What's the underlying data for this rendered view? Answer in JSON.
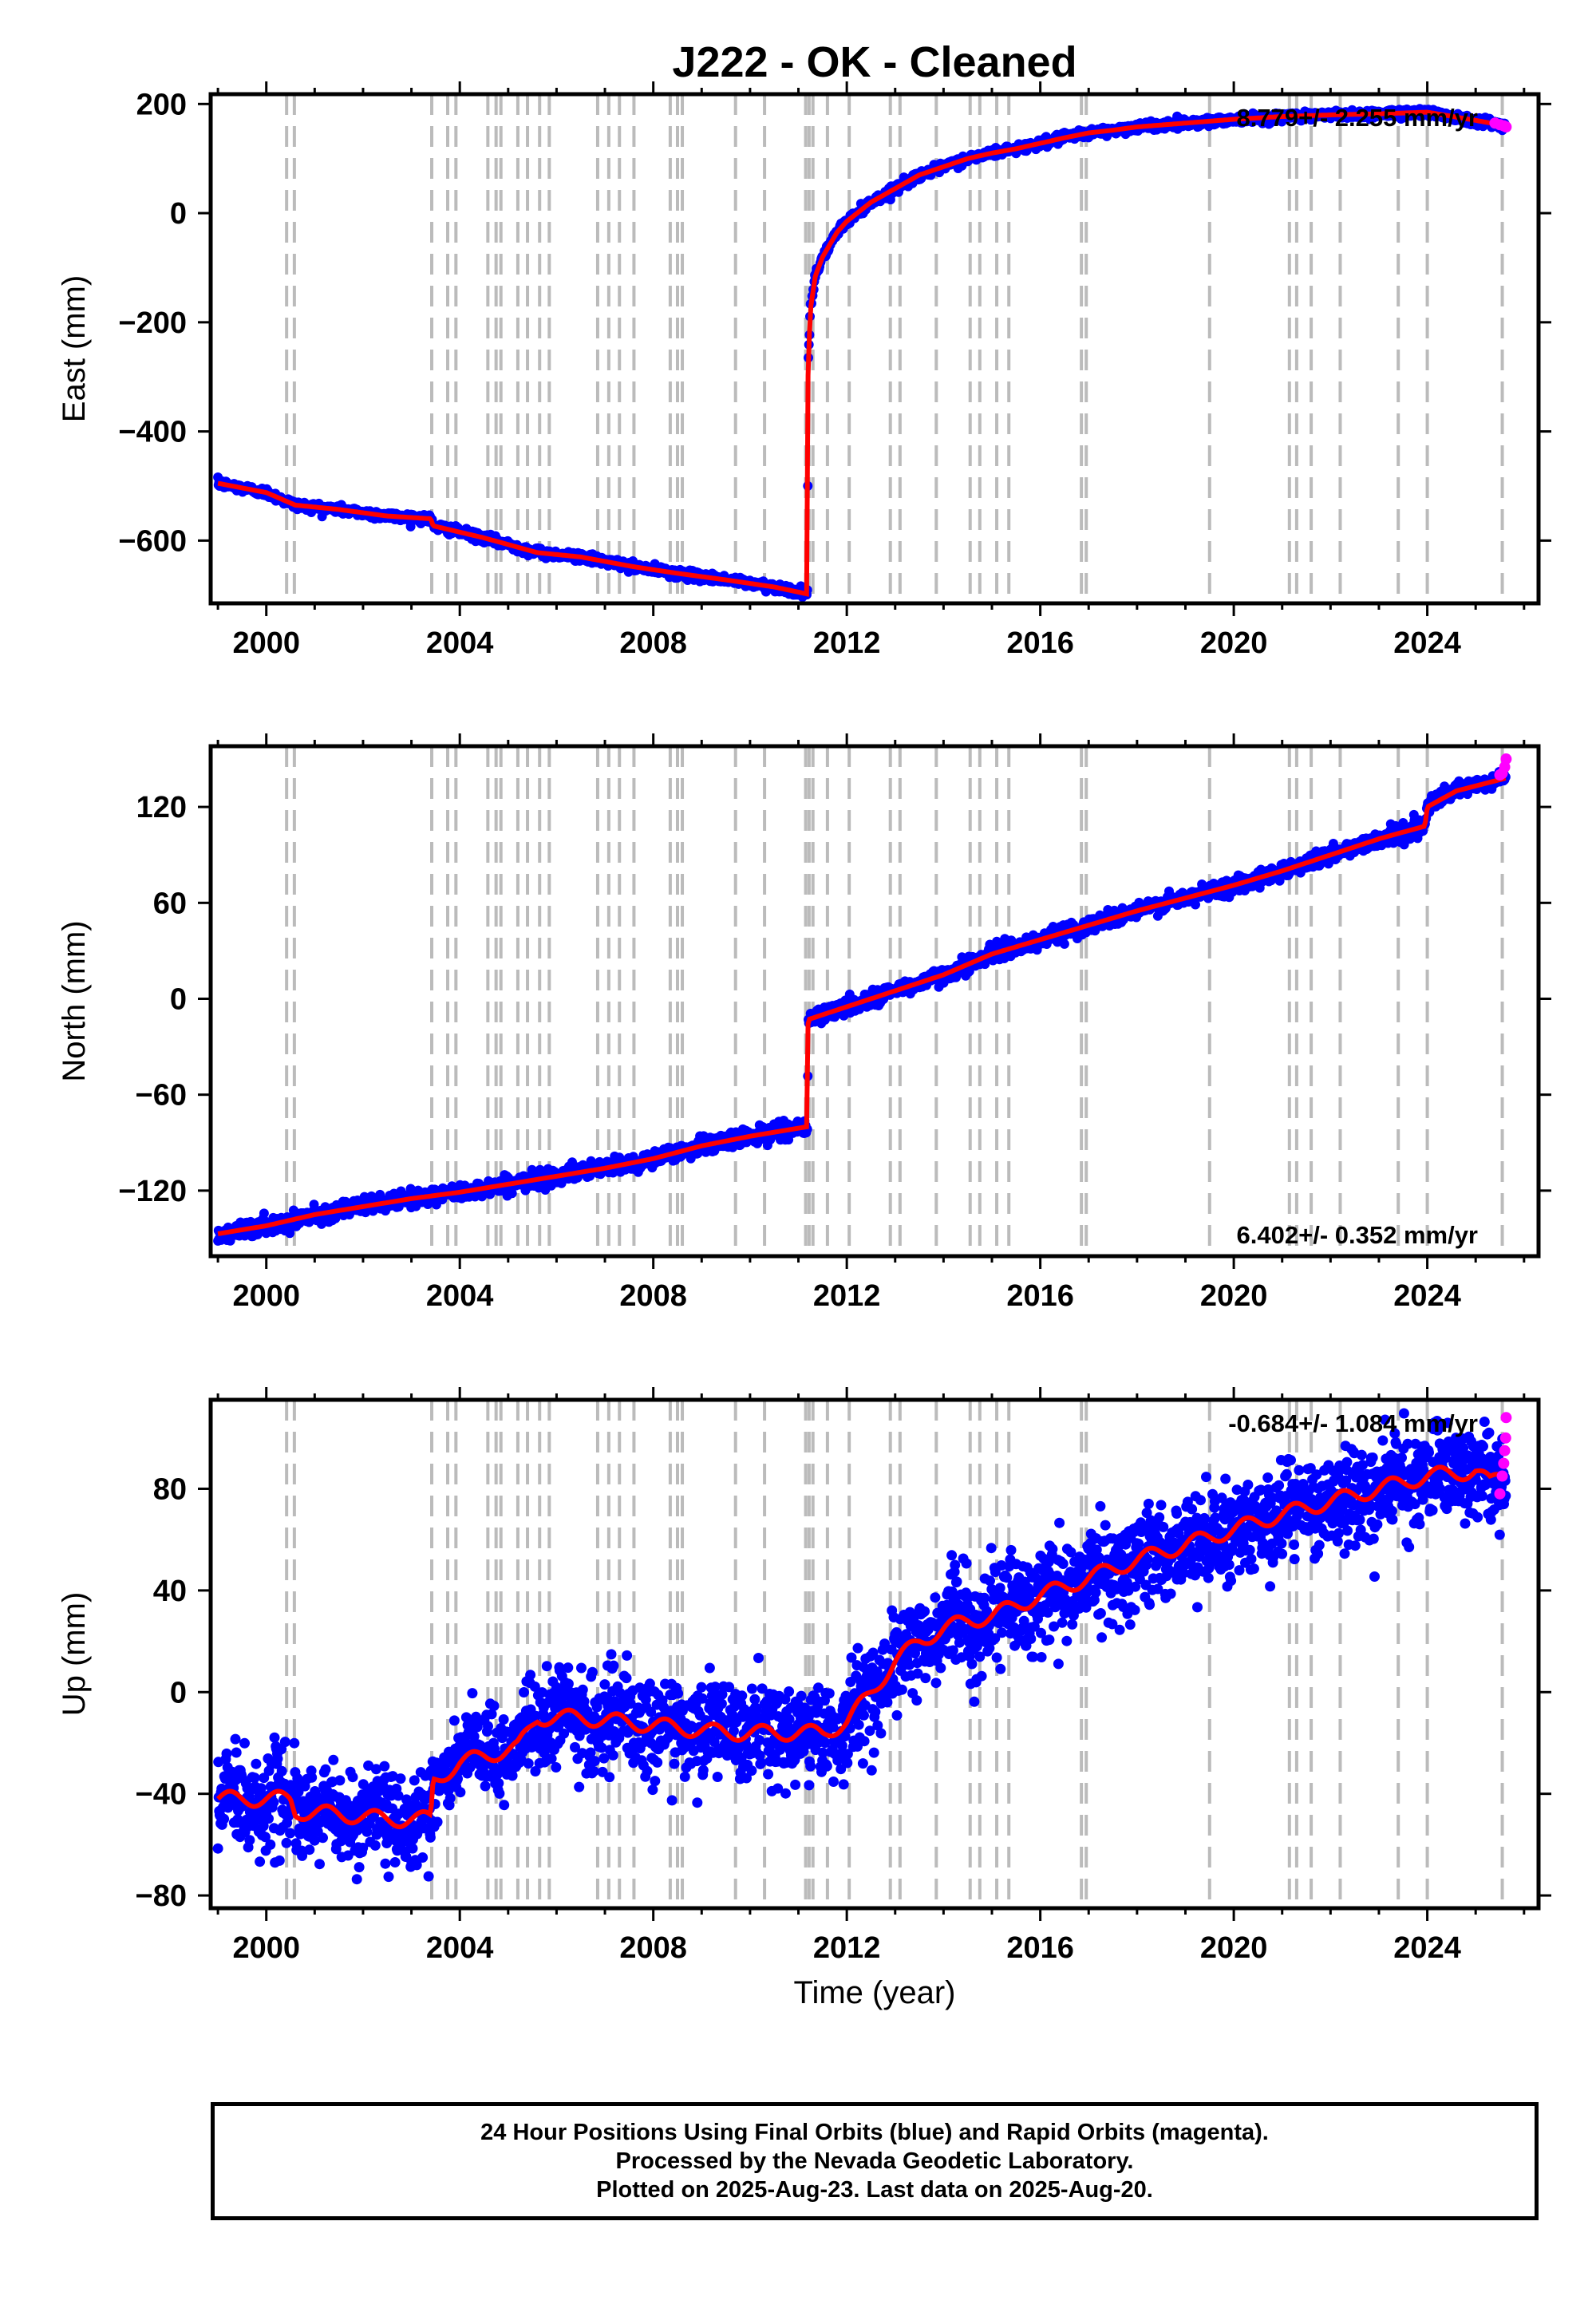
{
  "title": "J222  - OK - Cleaned",
  "xlabel": "Time (year)",
  "x_tick_labels": [
    "2000",
    "2004",
    "2008",
    "2012",
    "2016",
    "2020",
    "2024"
  ],
  "caption": [
    "24 Hour Positions Using Final Orbits (blue) and Rapid Orbits (magenta).",
    "Processed by the Nevada Geodetic Laboratory.",
    "Plotted on 2025-Aug-23. Last data on 2025-Aug-20."
  ],
  "colors": {
    "final_orbits": "#0000ff",
    "rapid_orbits": "#ff00ff",
    "model": "#ff0000",
    "event_lines": "#bbbbbb"
  },
  "event_years": [
    2000.42,
    2000.58,
    2003.42,
    2003.75,
    2003.92,
    2004.58,
    2004.75,
    2004.85,
    2005.2,
    2005.4,
    2005.65,
    2005.85,
    2006.85,
    2007.08,
    2007.3,
    2007.6,
    2008.35,
    2008.5,
    2008.6,
    2009.7,
    2010.3,
    2011.15,
    2011.22,
    2011.3,
    2011.6,
    2012.05,
    2012.9,
    2013.1,
    2013.85,
    2014.55,
    2014.75,
    2015.1,
    2015.35,
    2016.85,
    2016.95,
    2019.5,
    2021.15,
    2021.3,
    2021.6,
    2022.2,
    2023.4,
    2024.0,
    2025.55
  ],
  "chart_data": [
    {
      "type": "scatter",
      "panel": "east",
      "ylabel": "East (mm)",
      "xlim": [
        1998.85,
        2026.3
      ],
      "ylim": [
        -715,
        218
      ],
      "y_ticks": [
        200,
        0,
        -200,
        -400,
        -600
      ],
      "y_tick_labels": [
        "200",
        "0",
        "−200",
        "−400",
        "−600"
      ],
      "rate_label": "8.779+/- 2.255 mm/yr",
      "rate_label_position": "top-right",
      "scatter_sigma": 4,
      "series": [
        {
          "role": "final_orbits",
          "x": [
            1999.0,
            2000.0,
            2000.6,
            2001.5,
            2002.5,
            2003.4,
            2003.45,
            2004.5,
            2005.6,
            2006.5,
            2007.6,
            2008.5,
            2009.5,
            2010.5,
            2011.19,
            2011.2,
            2011.25,
            2011.35,
            2011.5,
            2011.8,
            2012.0,
            2012.5,
            2013.0,
            2013.5,
            2014.0,
            2014.5,
            2015.0,
            2015.5,
            2016.0,
            2016.5,
            2017.0,
            2017.5,
            2018.0,
            2019.0,
            2020.0,
            2021.0,
            2022.0,
            2023.0,
            2024.0,
            2025.0,
            2025.62
          ],
          "y": [
            -495,
            -512,
            -535,
            -543,
            -555,
            -560,
            -573,
            -595,
            -622,
            -630,
            -648,
            -660,
            -672,
            -685,
            -698,
            -280,
            -175,
            -115,
            -80,
            -35,
            -15,
            20,
            45,
            70,
            85,
            100,
            110,
            118,
            128,
            138,
            147,
            152,
            158,
            165,
            172,
            177,
            180,
            182,
            185,
            170,
            160
          ]
        },
        {
          "role": "rapid_orbits",
          "x": [
            2025.4,
            2025.5,
            2025.58,
            2025.63
          ],
          "y": [
            165,
            162,
            160,
            158
          ]
        }
      ]
    },
    {
      "type": "scatter",
      "panel": "north",
      "ylabel": "North (mm)",
      "xlim": [
        1998.85,
        2026.3
      ],
      "ylim": [
        -161,
        158
      ],
      "y_ticks": [
        120,
        60,
        0,
        -60,
        -120
      ],
      "y_tick_labels": [
        "120",
        "60",
        "0",
        "−60",
        "−120"
      ],
      "rate_label": "6.402+/- 0.352 mm/yr",
      "rate_label_position": "bottom-right",
      "scatter_sigma": 2.5,
      "series": [
        {
          "role": "final_orbits",
          "x": [
            1999.0,
            2000.0,
            2001.0,
            2002.0,
            2003.0,
            2004.0,
            2005.0,
            2006.0,
            2007.0,
            2008.0,
            2009.0,
            2010.0,
            2011.19,
            2011.2,
            2012.0,
            2013.0,
            2014.0,
            2015.0,
            2016.0,
            2017.0,
            2018.0,
            2019.0,
            2020.0,
            2021.0,
            2022.0,
            2023.0,
            2023.95,
            2024.0,
            2024.6,
            2025.62
          ],
          "y": [
            -147,
            -142,
            -135,
            -130,
            -125,
            -121,
            -116,
            -111,
            -106,
            -100,
            -92,
            -86,
            -80,
            -13,
            -5,
            5,
            15,
            28,
            37,
            46,
            55,
            63,
            71,
            80,
            90,
            100,
            108,
            120,
            130,
            138
          ]
        },
        {
          "role": "rapid_orbits",
          "x": [
            2025.5,
            2025.55,
            2025.6,
            2025.63
          ],
          "y": [
            140,
            141,
            145,
            150
          ]
        }
      ]
    },
    {
      "type": "scatter",
      "panel": "up",
      "ylabel": "Up (mm)",
      "xlim": [
        1998.85,
        2026.3
      ],
      "ylim": [
        -85,
        115
      ],
      "y_ticks": [
        80,
        40,
        0,
        -40,
        -80
      ],
      "y_tick_labels": [
        "80",
        "40",
        "0",
        "−40",
        "−80"
      ],
      "rate_label": "-0.684+/- 1.084 mm/yr",
      "rate_label_position": "top-right",
      "scatter_sigma": 9,
      "seasonal_amplitude_mm": 3,
      "series": [
        {
          "role": "final_orbits",
          "x": [
            1999.0,
            2000.0,
            2000.5,
            2000.6,
            2001.5,
            2002.5,
            2003.4,
            2003.45,
            2004.0,
            2004.5,
            2005.2,
            2005.6,
            2006.5,
            2007.5,
            2008.5,
            2009.5,
            2010.5,
            2011.5,
            2012.0,
            2012.5,
            2013.0,
            2013.5,
            2014.0,
            2014.5,
            2015.0,
            2015.5,
            2016.0,
            2017.0,
            2018.0,
            2019.0,
            2020.0,
            2021.0,
            2022.0,
            2023.0,
            2024.0,
            2025.0,
            2025.3,
            2025.62
          ],
          "y": [
            -42,
            -42,
            -42,
            -47,
            -48,
            -50,
            -50,
            -35,
            -28,
            -25,
            -22,
            -10,
            -10,
            -12,
            -14,
            -16,
            -16,
            -16,
            -12,
            0,
            12,
            20,
            25,
            28,
            30,
            34,
            38,
            45,
            52,
            58,
            64,
            70,
            75,
            80,
            85,
            87,
            82,
            88
          ]
        },
        {
          "role": "rapid_orbits",
          "x": [
            2025.5,
            2025.55,
            2025.58,
            2025.6,
            2025.62,
            2025.63
          ],
          "y": [
            78,
            85,
            90,
            95,
            100,
            108
          ]
        }
      ]
    }
  ]
}
